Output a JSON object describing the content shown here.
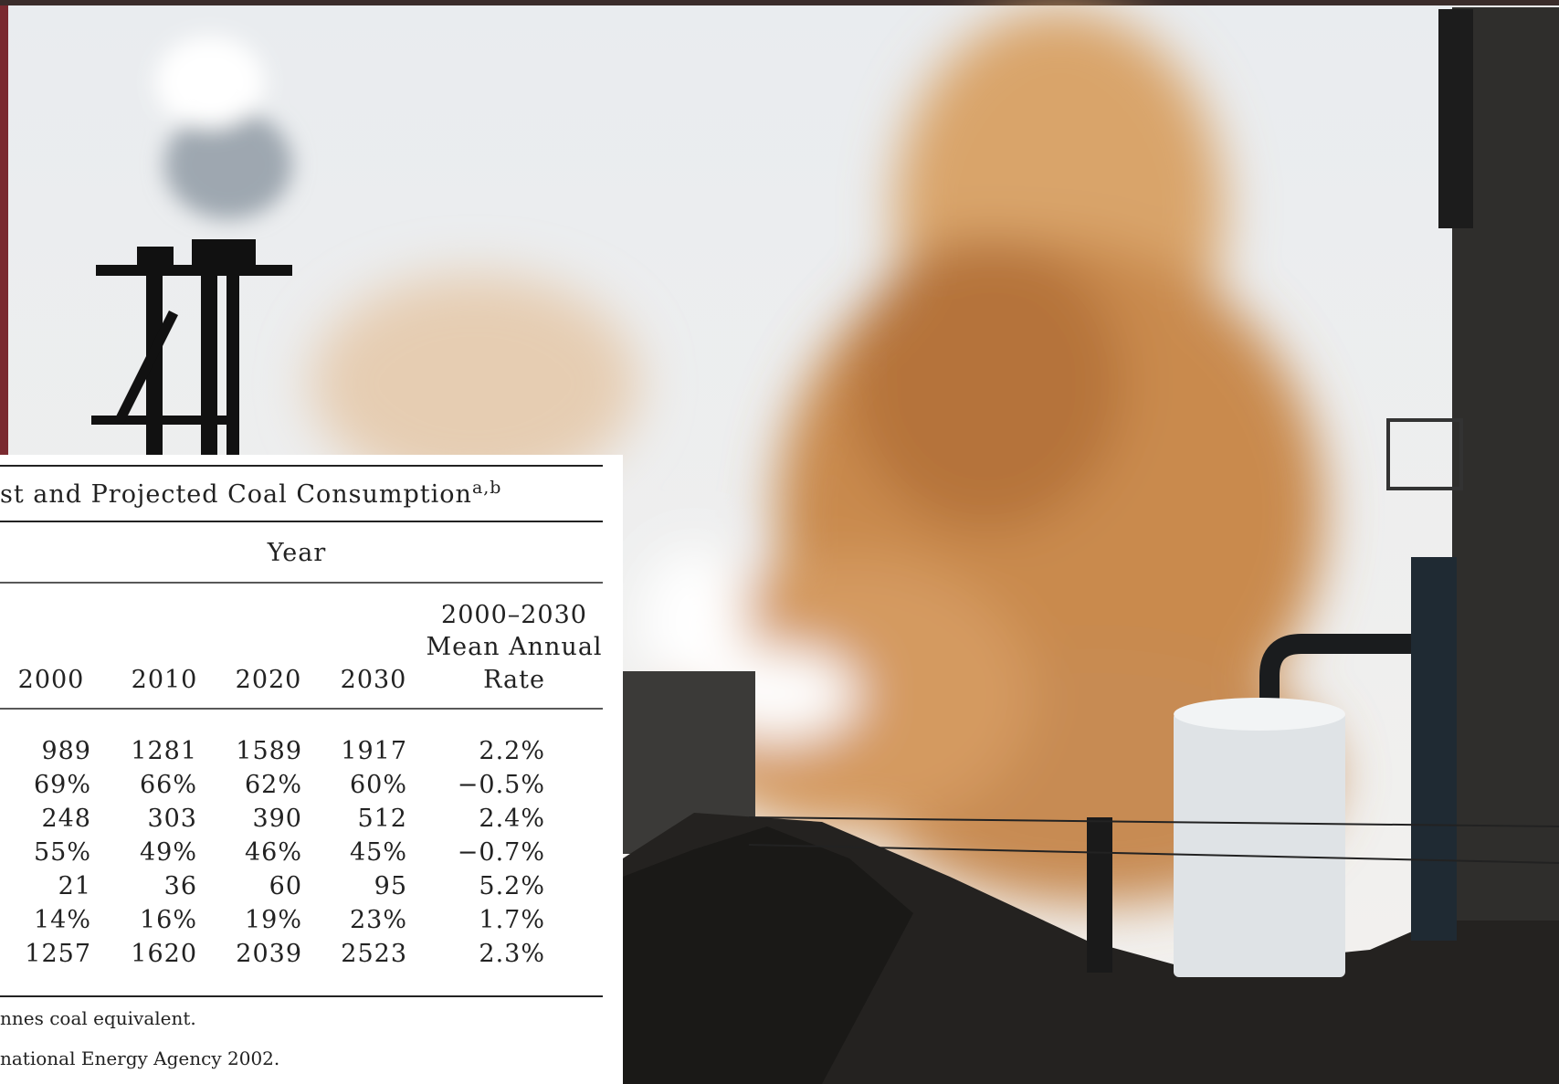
{
  "table": {
    "title": "st and Projected Coal Consumption",
    "title_superscript": "a,b",
    "group_header": "Year",
    "columns": [
      "2000",
      "2010",
      "2020",
      "2030"
    ],
    "rate_header": [
      "2000–2030",
      "Mean Annual",
      "Rate"
    ],
    "rows": [
      [
        "989",
        "1281",
        "1589",
        "1917",
        "2.2%"
      ],
      [
        "69%",
        "66%",
        "62%",
        "60%",
        "−0.5%"
      ],
      [
        "248",
        "303",
        "390",
        "512",
        "2.4%"
      ],
      [
        "55%",
        "49%",
        "46%",
        "45%",
        "−0.7%"
      ],
      [
        "21",
        "36",
        "60",
        "95",
        "5.2%"
      ],
      [
        "14%",
        "16%",
        "19%",
        "23%",
        "1.7%"
      ],
      [
        "1257",
        "1620",
        "2039",
        "2523",
        "2.3%"
      ]
    ],
    "notes": [
      "nnes coal equivalent.",
      "national Energy Agency 2002."
    ]
  }
}
